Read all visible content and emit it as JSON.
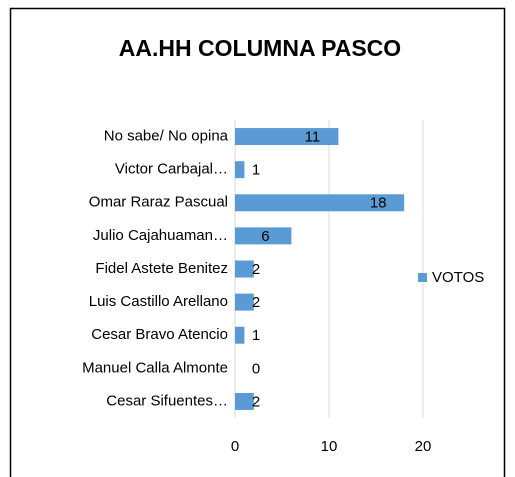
{
  "chart_data": {
    "type": "bar",
    "orientation": "horizontal",
    "title": "AA.HH COLUMNA PASCO",
    "categories": [
      "No sabe/ No opina",
      "Victor Carbajal…",
      "Omar Raraz Pascual",
      "Julio Cajahuaman…",
      "Fidel Astete Benitez",
      "Luis Castillo Arellano",
      "Cesar Bravo Atencio",
      "Manuel Calla Almonte",
      "Cesar Sifuentes…"
    ],
    "series": [
      {
        "name": "VOTOS",
        "color": "#5b9bd5",
        "values": [
          11,
          1,
          18,
          6,
          2,
          2,
          1,
          0,
          2
        ]
      }
    ],
    "xlim": [
      0,
      20
    ],
    "xticks": [
      0,
      10,
      20
    ],
    "grid": true,
    "legend": "right"
  }
}
